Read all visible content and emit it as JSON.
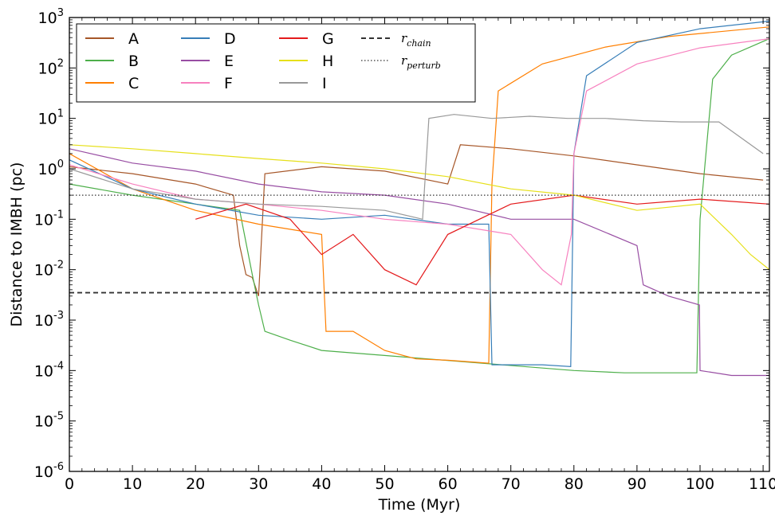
{
  "chart_data": {
    "type": "line",
    "xlabel": "Time (Myr)",
    "ylabel": "Distance to IMBH (pc)",
    "xlim": [
      0,
      111
    ],
    "ylim": [
      1e-06,
      1000
    ],
    "yscale": "log",
    "grid": false,
    "legend_position": "top-left",
    "x_ticks": [
      0,
      10,
      20,
      30,
      40,
      50,
      60,
      70,
      80,
      90,
      100,
      110
    ],
    "x_tick_labels": [
      "0",
      "10",
      "20",
      "30",
      "40",
      "50",
      "60",
      "70",
      "80",
      "90",
      "100",
      "110"
    ],
    "y_ticks": [
      1e-06,
      1e-05,
      0.0001,
      0.001,
      0.01,
      0.1,
      1,
      10,
      100,
      1000
    ],
    "y_tick_labels": [
      {
        "base": "10",
        "exp": "-6"
      },
      {
        "base": "10",
        "exp": "-5"
      },
      {
        "base": "10",
        "exp": "-4"
      },
      {
        "base": "10",
        "exp": "-3"
      },
      {
        "base": "10",
        "exp": "-2"
      },
      {
        "base": "10",
        "exp": "-1"
      },
      {
        "base": "10",
        "exp": "0"
      },
      {
        "base": "10",
        "exp": "1"
      },
      {
        "base": "10",
        "exp": "2"
      },
      {
        "base": "10",
        "exp": "3"
      }
    ],
    "reference_lines": [
      {
        "label": "r",
        "subscript": "chain",
        "y": 0.0035,
        "style": "dashed",
        "color": "#333333"
      },
      {
        "label": "r",
        "subscript": "perturb",
        "y": 0.3,
        "style": "dotted",
        "color": "#333333"
      }
    ],
    "series": [
      {
        "name": "A",
        "color": "#a65628",
        "points": [
          [
            0,
            1.1
          ],
          [
            10,
            0.8
          ],
          [
            20,
            0.5
          ],
          [
            26,
            0.3
          ],
          [
            27,
            0.03
          ],
          [
            28,
            0.008
          ],
          [
            29,
            0.007
          ],
          [
            30,
            0.003
          ],
          [
            31,
            0.8
          ],
          [
            40,
            1.1
          ],
          [
            50,
            0.9
          ],
          [
            60,
            0.5
          ],
          [
            62,
            3.0
          ],
          [
            70,
            2.5
          ],
          [
            80,
            1.8
          ],
          [
            90,
            1.2
          ],
          [
            100,
            0.8
          ],
          [
            110,
            0.6
          ]
        ]
      },
      {
        "name": "B",
        "color": "#4daf4a",
        "points": [
          [
            0,
            0.5
          ],
          [
            10,
            0.3
          ],
          [
            20,
            0.2
          ],
          [
            27,
            0.15
          ],
          [
            29,
            0.008
          ],
          [
            30,
            0.002
          ],
          [
            31,
            0.0006
          ],
          [
            35,
            0.0004
          ],
          [
            40,
            0.00025
          ],
          [
            80,
            0.0001
          ],
          [
            88,
            9e-05
          ],
          [
            95,
            9e-05
          ],
          [
            99.5,
            9e-05
          ],
          [
            100,
            0.1
          ],
          [
            102,
            60
          ],
          [
            105,
            180
          ],
          [
            111,
            380
          ]
        ]
      },
      {
        "name": "C",
        "color": "#ff7f00",
        "points": [
          [
            0,
            2.0
          ],
          [
            10,
            0.4
          ],
          [
            20,
            0.15
          ],
          [
            30,
            0.08
          ],
          [
            40,
            0.05
          ],
          [
            40.7,
            0.0006
          ],
          [
            45,
            0.0006
          ],
          [
            50,
            0.00025
          ],
          [
            55,
            0.00017
          ],
          [
            60,
            0.00016
          ],
          [
            66.5,
            0.00014
          ],
          [
            67,
            0.5
          ],
          [
            68,
            35
          ],
          [
            75,
            120
          ],
          [
            85,
            260
          ],
          [
            95,
            420
          ],
          [
            111,
            650
          ]
        ]
      },
      {
        "name": "D",
        "color": "#377eb8",
        "points": [
          [
            0,
            1.5
          ],
          [
            10,
            0.4
          ],
          [
            20,
            0.2
          ],
          [
            30,
            0.12
          ],
          [
            40,
            0.1
          ],
          [
            50,
            0.12
          ],
          [
            60,
            0.08
          ],
          [
            66.5,
            0.08
          ],
          [
            67,
            0.00013
          ],
          [
            75,
            0.00013
          ],
          [
            79.5,
            0.00012
          ],
          [
            80,
            2
          ],
          [
            82,
            70
          ],
          [
            90,
            320
          ],
          [
            100,
            600
          ],
          [
            111,
            850
          ]
        ]
      },
      {
        "name": "E",
        "color": "#984ea3",
        "points": [
          [
            0,
            2.5
          ],
          [
            10,
            1.3
          ],
          [
            20,
            0.9
          ],
          [
            30,
            0.5
          ],
          [
            40,
            0.35
          ],
          [
            50,
            0.3
          ],
          [
            60,
            0.2
          ],
          [
            70,
            0.1
          ],
          [
            80,
            0.1
          ],
          [
            90,
            0.03
          ],
          [
            91,
            0.005
          ],
          [
            95,
            0.003
          ],
          [
            99.9,
            0.002
          ],
          [
            100,
            0.0001
          ],
          [
            105,
            8e-05
          ],
          [
            111,
            8e-05
          ]
        ]
      },
      {
        "name": "F",
        "color": "#f781bf",
        "points": [
          [
            0,
            1.2
          ],
          [
            10,
            0.5
          ],
          [
            20,
            0.25
          ],
          [
            30,
            0.2
          ],
          [
            40,
            0.15
          ],
          [
            50,
            0.1
          ],
          [
            60,
            0.08
          ],
          [
            70,
            0.05
          ],
          [
            75,
            0.01
          ],
          [
            78,
            0.005
          ],
          [
            79.6,
            0.05
          ],
          [
            80,
            2
          ],
          [
            82,
            35
          ],
          [
            90,
            120
          ],
          [
            100,
            250
          ],
          [
            111,
            380
          ]
        ]
      },
      {
        "name": "G",
        "color": "#e41a1c",
        "points": [
          [
            20,
            0.1
          ],
          [
            28,
            0.2
          ],
          [
            35,
            0.1
          ],
          [
            40,
            0.02
          ],
          [
            45,
            0.05
          ],
          [
            50,
            0.01
          ],
          [
            55,
            0.005
          ],
          [
            60,
            0.05
          ],
          [
            70,
            0.2
          ],
          [
            80,
            0.3
          ],
          [
            90,
            0.2
          ],
          [
            100,
            0.25
          ],
          [
            111,
            0.2
          ]
        ]
      },
      {
        "name": "H",
        "color": "#e6e01a",
        "points": [
          [
            0,
            3.0
          ],
          [
            10,
            2.5
          ],
          [
            20,
            2.0
          ],
          [
            30,
            1.6
          ],
          [
            40,
            1.3
          ],
          [
            50,
            1.0
          ],
          [
            60,
            0.7
          ],
          [
            70,
            0.4
          ],
          [
            80,
            0.3
          ],
          [
            90,
            0.15
          ],
          [
            100,
            0.2
          ],
          [
            105,
            0.05
          ],
          [
            108,
            0.02
          ],
          [
            111,
            0.01
          ]
        ]
      },
      {
        "name": "I",
        "color": "#999999",
        "points": [
          [
            0,
            1.0
          ],
          [
            10,
            0.4
          ],
          [
            20,
            0.25
          ],
          [
            30,
            0.2
          ],
          [
            40,
            0.18
          ],
          [
            50,
            0.15
          ],
          [
            56,
            0.1
          ],
          [
            57,
            10
          ],
          [
            61,
            12
          ],
          [
            67,
            10
          ],
          [
            73,
            11
          ],
          [
            79,
            10
          ],
          [
            85,
            10
          ],
          [
            91,
            9
          ],
          [
            97,
            8.5
          ],
          [
            103,
            8.5
          ],
          [
            110,
            2
          ]
        ]
      }
    ]
  }
}
